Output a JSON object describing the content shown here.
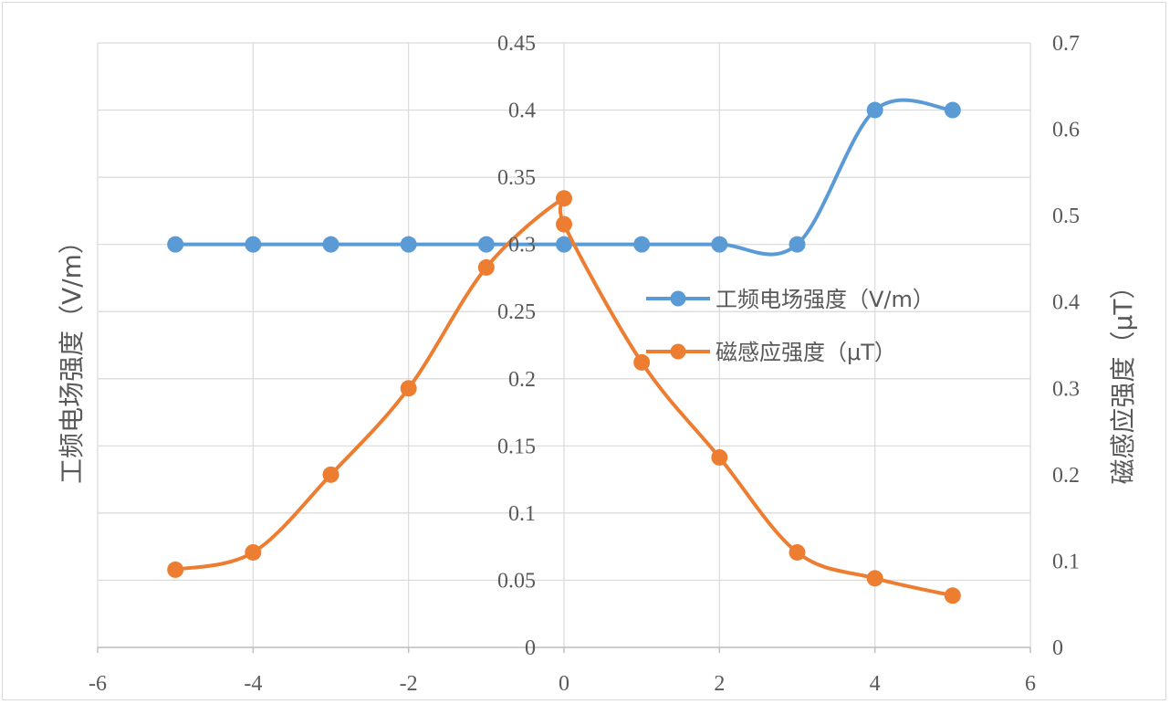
{
  "chart_data": {
    "type": "line",
    "smooth": true,
    "x": [
      -5,
      -4,
      -3,
      -2,
      -1,
      0,
      0,
      1,
      2,
      3,
      4,
      5
    ],
    "series": [
      {
        "name": "工频电场强度（V/m）",
        "axis": "left",
        "color": "#5B9BD5",
        "x": [
          -5,
          -4,
          -3,
          -2,
          -1,
          0,
          1,
          2,
          3,
          4,
          5
        ],
        "values": [
          0.3,
          0.3,
          0.3,
          0.3,
          0.3,
          0.3,
          0.3,
          0.3,
          0.3,
          0.4,
          0.4
        ]
      },
      {
        "name": "磁感应强度（μT）",
        "axis": "right",
        "color": "#ED7D31",
        "x": [
          -5,
          -4,
          -3,
          -2,
          -1,
          0,
          0,
          1,
          2,
          3,
          4,
          5
        ],
        "values": [
          0.09,
          0.11,
          0.2,
          0.3,
          0.44,
          0.52,
          0.49,
          0.33,
          0.22,
          0.11,
          0.08,
          0.06
        ]
      }
    ],
    "xlim": [
      -6,
      6
    ],
    "xticks": [
      "-6",
      "-4",
      "-2",
      "0",
      "2",
      "4",
      "6"
    ],
    "ylim_left": [
      0,
      0.45
    ],
    "yticks_left": [
      "0",
      "0.05",
      "0.1",
      "0.15",
      "0.2",
      "0.25",
      "0.3",
      "0.35",
      "0.4",
      "0.45"
    ],
    "ylim_right": [
      0,
      0.7
    ],
    "yticks_right": [
      "0",
      "0.1",
      "0.2",
      "0.3",
      "0.4",
      "0.5",
      "0.6",
      "0.7"
    ],
    "ylabel_left": "工频电场强度（V/m）",
    "ylabel_right": "磁感应强度（μT）",
    "xlabel": "",
    "title": "",
    "grid": true,
    "legend_position": "right",
    "grid_color": "#d9d9d9",
    "axis_color": "#bfbfbf"
  }
}
